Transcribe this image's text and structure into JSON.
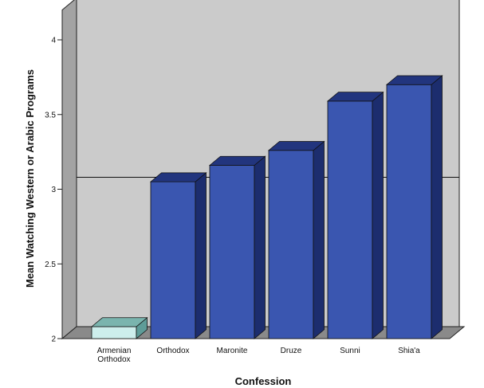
{
  "chart_data": {
    "type": "bar",
    "xlabel": "Confession",
    "ylabel": "Mean Watching Western or Arabic Programs",
    "ylim": [
      2,
      4.2
    ],
    "yticks": [
      "2",
      "2.5",
      "3",
      "3.5",
      "4"
    ],
    "ytick_values": [
      2,
      2.5,
      3,
      3.5,
      4
    ],
    "reference_line": 3,
    "grid": false,
    "categories": [
      "Armenian Orthodox",
      "Orthodox",
      "Maronite",
      "Druze",
      "Sunni",
      "Shia'a"
    ],
    "category_lines": [
      [
        "Armenian",
        "Orthodox"
      ],
      [
        "Orthodox"
      ],
      [
        "Maronite"
      ],
      [
        "Druze"
      ],
      [
        "Sunni"
      ],
      [
        "Shia'a"
      ]
    ],
    "values": [
      2.08,
      3.05,
      3.16,
      3.26,
      3.59,
      3.7
    ],
    "colors": {
      "bar_front": "#3a56b0",
      "bar_side": "#1c2d6e",
      "bar_top": "#22357e",
      "highlight_front": "#cdeeec",
      "highlight_side": "#5e9c98",
      "highlight_top": "#7ab4ae",
      "wall": "#cbcbcb",
      "floor": "#8a8a8a"
    },
    "highlight_index": 0
  }
}
